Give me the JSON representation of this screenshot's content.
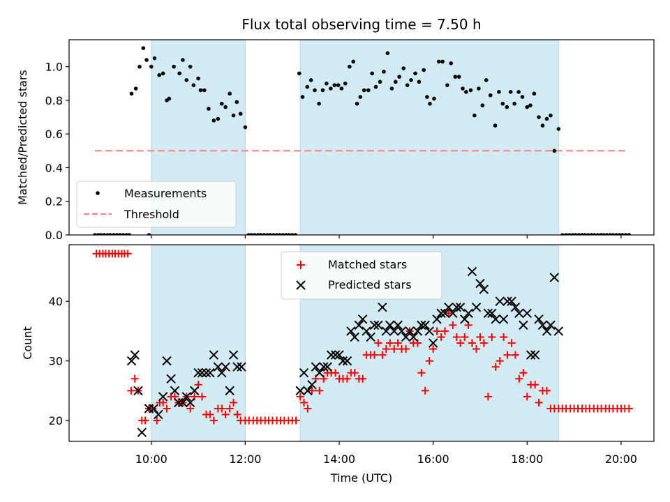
{
  "chart_data": {
    "type": "scatter",
    "title": "Flux total observing time = 7.50 h",
    "xlabel": "Time (UTC)",
    "x_unit": "hours UTC",
    "x_range": [
      8.25,
      20.7
    ],
    "x_ticks": [
      10,
      12,
      14,
      16,
      18,
      20
    ],
    "x_tick_labels": [
      "10:00",
      "12:00",
      "14:00",
      "16:00",
      "18:00",
      "20:00"
    ],
    "shaded_intervals": [
      [
        10.0,
        12.0
      ],
      [
        13.17,
        18.67
      ]
    ],
    "shade_color": "#add8e6",
    "panels": [
      {
        "name": "ratio-panel",
        "ylabel": "Matched/Predicted stars",
        "ylim": [
          0,
          1.16
        ],
        "y_ticks": [
          0.0,
          0.2,
          0.4,
          0.6,
          0.8,
          1.0
        ],
        "y_tick_labels": [
          "0.0",
          "0.2",
          "0.4",
          "0.6",
          "0.8",
          "1.0"
        ],
        "legend_position": "lower-left",
        "threshold": {
          "name": "Threshold",
          "value": 0.5,
          "x_range": [
            8.8,
            20.1
          ],
          "color": "#ff7f7f"
        },
        "series": [
          {
            "name": "Measurements",
            "marker": "dot",
            "color": "#000000",
            "x": [
              8.8,
              8.87,
              8.93,
              9.0,
              9.07,
              9.13,
              9.2,
              9.27,
              9.33,
              9.4,
              9.47,
              9.53,
              9.58,
              9.67,
              9.75,
              9.83,
              9.9,
              9.95,
              10.0,
              10.07,
              10.17,
              10.25,
              10.33,
              10.38,
              10.48,
              10.6,
              10.67,
              10.75,
              10.83,
              10.9,
              11.0,
              11.05,
              11.13,
              11.22,
              11.33,
              11.42,
              11.5,
              11.58,
              11.67,
              11.75,
              11.82,
              11.9,
              12.0,
              12.07,
              12.13,
              12.2,
              12.27,
              12.33,
              12.4,
              12.47,
              12.53,
              12.6,
              12.67,
              12.73,
              12.8,
              12.87,
              12.93,
              13.0,
              13.07,
              13.15,
              13.22,
              13.32,
              13.4,
              13.48,
              13.57,
              13.65,
              13.73,
              13.82,
              13.9,
              13.98,
              14.05,
              14.13,
              14.22,
              14.3,
              14.38,
              14.45,
              14.53,
              14.62,
              14.7,
              14.78,
              14.87,
              14.95,
              15.03,
              15.12,
              15.2,
              15.28,
              15.37,
              15.45,
              15.53,
              15.62,
              15.7,
              15.8,
              15.87,
              15.93,
              16.02,
              16.12,
              16.2,
              16.3,
              16.38,
              16.47,
              16.55,
              16.63,
              16.7,
              16.8,
              16.88,
              16.97,
              17.05,
              17.13,
              17.22,
              17.32,
              17.4,
              17.48,
              17.57,
              17.65,
              17.73,
              17.82,
              17.9,
              18.0,
              18.07,
              18.15,
              18.25,
              18.33,
              18.42,
              18.5,
              18.58,
              18.67,
              18.75,
              18.83,
              18.9,
              18.97,
              19.03,
              19.1,
              19.17,
              19.23,
              19.3,
              19.37,
              19.43,
              19.5,
              19.57,
              19.63,
              19.7,
              19.77,
              19.83,
              19.9,
              19.97,
              20.03,
              20.1,
              20.17
            ],
            "y": [
              0,
              0,
              0,
              0,
              0,
              0,
              0,
              0,
              0,
              0,
              0,
              0,
              0.84,
              0.87,
              1.0,
              1.11,
              1.04,
              0,
              1.0,
              1.05,
              0.95,
              0.96,
              0.8,
              0.81,
              1.0,
              0.96,
              1.04,
              0.92,
              1.0,
              0.89,
              0.93,
              0.86,
              0.86,
              0.75,
              0.68,
              0.69,
              0.78,
              0.76,
              0.84,
              0.71,
              0.79,
              0.72,
              0.64,
              0,
              0,
              0,
              0,
              0,
              0,
              0,
              0,
              0,
              0,
              0,
              0,
              0,
              0,
              0,
              0,
              0.96,
              0.82,
              0.88,
              0.92,
              0.86,
              0.78,
              0.86,
              0.9,
              0.87,
              0.89,
              0.89,
              0.87,
              0.9,
              1.0,
              1.03,
              0.78,
              0.82,
              0.86,
              0.86,
              0.96,
              0.88,
              0.91,
              0.97,
              1.08,
              0.87,
              0.91,
              0.94,
              0.99,
              0.89,
              0.92,
              0.96,
              0.91,
              0.98,
              0.82,
              0.78,
              0.81,
              1.03,
              1.03,
              0.89,
              1.02,
              0.94,
              0.94,
              0.87,
              0.85,
              0.86,
              0.71,
              0.87,
              0.77,
              0.92,
              0.83,
              0.65,
              0.85,
              0.78,
              0.76,
              0.85,
              0.78,
              0.85,
              0.82,
              0.76,
              0.77,
              0.84,
              0.7,
              0.65,
              0.69,
              0.71,
              0.5,
              0.63,
              0,
              0,
              0,
              0,
              0,
              0,
              0,
              0,
              0,
              0,
              0,
              0,
              0,
              0,
              0,
              0,
              0,
              0,
              0,
              0,
              0,
              0
            ]
          }
        ]
      },
      {
        "name": "count-panel",
        "ylabel": "Count",
        "ylim": [
          16.5,
          49.5
        ],
        "y_ticks": [
          20,
          30,
          40
        ],
        "y_tick_labels": [
          "20",
          "30",
          "40"
        ],
        "legend_position": "upper-center",
        "series": [
          {
            "name": "Matched stars",
            "marker": "plus",
            "color": "#ff0000",
            "x": [
              8.83,
              8.9,
              8.97,
              9.03,
              9.1,
              9.17,
              9.23,
              9.3,
              9.37,
              9.43,
              9.5,
              9.57,
              9.65,
              9.72,
              9.8,
              9.87,
              9.95,
              10.03,
              10.12,
              10.18,
              10.25,
              10.33,
              10.42,
              10.5,
              10.58,
              10.67,
              10.75,
              10.83,
              10.92,
              11.0,
              11.08,
              11.17,
              11.25,
              11.33,
              11.42,
              11.5,
              11.58,
              11.67,
              11.75,
              11.83,
              11.9,
              12.0,
              12.08,
              12.17,
              12.25,
              12.33,
              12.42,
              12.5,
              12.58,
              12.67,
              12.75,
              12.83,
              12.92,
              13.0,
              13.08,
              13.17,
              13.25,
              13.33,
              13.42,
              13.5,
              13.58,
              13.67,
              13.75,
              13.83,
              13.92,
              14.0,
              14.08,
              14.17,
              14.25,
              14.33,
              14.42,
              14.5,
              14.58,
              14.67,
              14.75,
              14.83,
              14.92,
              15.0,
              15.08,
              15.17,
              15.25,
              15.33,
              15.42,
              15.5,
              15.58,
              15.67,
              15.75,
              15.83,
              15.92,
              16.0,
              16.08,
              16.17,
              16.25,
              16.33,
              16.42,
              16.5,
              16.58,
              16.67,
              16.75,
              16.83,
              16.92,
              17.0,
              17.08,
              17.17,
              17.25,
              17.33,
              17.42,
              17.5,
              17.58,
              17.67,
              17.75,
              17.83,
              17.92,
              18.0,
              18.08,
              18.17,
              18.25,
              18.33,
              18.42,
              18.5,
              18.58,
              18.67,
              18.75,
              18.83,
              18.92,
              19.0,
              19.08,
              19.17,
              19.25,
              19.33,
              19.42,
              19.5,
              19.58,
              19.67,
              19.75,
              19.83,
              19.92,
              20.0,
              20.08,
              20.17
            ],
            "y": [
              48,
              48,
              48,
              48,
              48,
              48,
              48,
              48,
              48,
              48,
              48,
              25,
              27,
              25,
              20,
              20,
              22,
              22,
              20,
              23,
              23,
              22,
              24,
              24,
              23,
              23,
              24,
              22,
              24,
              26,
              24,
              21,
              21,
              20,
              22,
              22,
              21,
              22,
              23,
              21,
              20,
              20,
              20,
              20,
              20,
              20,
              20,
              20,
              20,
              20,
              20,
              20,
              20,
              20,
              20,
              24,
              23,
              22,
              25,
              27,
              25,
              27,
              28,
              28,
              28,
              27,
              27,
              27,
              28,
              28,
              27,
              27,
              31,
              31,
              31,
              33,
              31,
              32,
              33,
              32,
              33,
              32,
              32,
              35,
              33,
              33,
              28,
              25,
              30,
              32,
              35,
              34,
              35,
              38,
              36,
              34,
              33,
              34,
              36,
              33,
              32,
              34,
              33,
              24,
              34,
              29,
              30,
              34,
              31,
              33,
              31,
              27,
              28,
              24,
              26,
              26,
              23,
              25,
              25,
              22,
              22,
              22,
              22,
              22,
              22,
              22,
              22,
              22,
              22,
              22,
              22,
              22,
              22,
              22,
              22,
              22,
              22,
              22,
              22,
              22
            ]
          },
          {
            "name": "Predicted stars",
            "marker": "x",
            "color": "#000000",
            "x": [
              9.58,
              9.65,
              9.72,
              9.8,
              9.95,
              10.05,
              10.15,
              10.25,
              10.33,
              10.42,
              10.5,
              10.58,
              10.67,
              10.75,
              10.83,
              10.92,
              11.0,
              11.08,
              11.17,
              11.25,
              11.33,
              11.42,
              11.5,
              11.58,
              11.67,
              11.75,
              11.83,
              11.92,
              13.17,
              13.25,
              13.33,
              13.42,
              13.5,
              13.58,
              13.67,
              13.75,
              13.83,
              13.92,
              14.0,
              14.08,
              14.17,
              14.25,
              14.33,
              14.42,
              14.5,
              14.58,
              14.67,
              14.75,
              14.83,
              14.92,
              15.0,
              15.08,
              15.17,
              15.25,
              15.33,
              15.42,
              15.5,
              15.58,
              15.67,
              15.75,
              15.83,
              15.92,
              16.0,
              16.08,
              16.17,
              16.25,
              16.33,
              16.42,
              16.5,
              16.58,
              16.67,
              16.75,
              16.83,
              16.92,
              17.0,
              17.08,
              17.17,
              17.25,
              17.33,
              17.42,
              17.5,
              17.58,
              17.67,
              17.75,
              17.83,
              17.92,
              18.0,
              18.08,
              18.17,
              18.25,
              18.33,
              18.42,
              18.5,
              18.58,
              18.67
            ],
            "y": [
              30,
              31,
              25,
              18,
              22,
              22,
              21,
              24,
              30,
              27,
              25,
              23,
              23,
              24,
              23,
              25,
              28,
              28,
              28,
              28,
              31,
              29,
              28,
              29,
              25,
              31,
              29,
              29,
              25,
              28,
              25,
              26,
              29,
              28,
              29,
              29,
              31,
              31,
              31,
              30,
              30,
              35,
              34,
              36,
              37,
              35,
              34,
              36,
              36,
              39,
              35,
              36,
              35,
              36,
              35,
              34,
              35,
              34,
              35,
              36,
              36,
              35,
              33,
              37,
              38,
              38,
              39,
              38,
              39,
              39,
              37,
              38,
              45,
              39,
              43,
              42,
              38,
              38,
              37,
              40,
              37,
              40,
              40,
              39,
              38,
              36,
              38,
              31,
              31,
              37,
              36,
              35,
              36,
              44,
              35
            ]
          }
        ]
      }
    ]
  }
}
